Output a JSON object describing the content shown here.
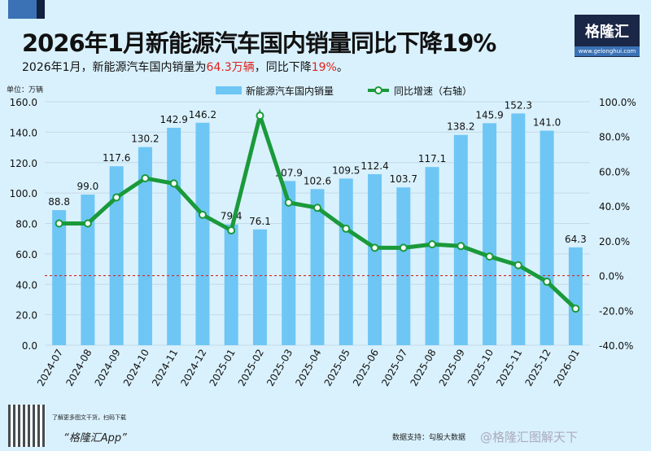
{
  "title": "2026年1月新能源汽车国内销量同比下降19%",
  "subtitle": {
    "pre": "2026年1月，新能源汽车国内销量为",
    "v1": "64.3万辆",
    "mid": "，同比下降",
    "v2": "19%",
    "post": "。"
  },
  "logo": {
    "name": "格隆汇",
    "url": "www.gelonghui.com"
  },
  "footer": {
    "qr_text": "了解更多图文干货，扫码下载",
    "app": "“格隆汇App”",
    "source": "数据支持：勾股大数据",
    "watermark": "@格隆汇图解天下"
  },
  "colors": {
    "bar": "#6ec6f5",
    "line": "#1a9a3a",
    "zero": "#d9262a"
  },
  "chart_data": {
    "type": "bar+line",
    "unit_label": "单位：万辆",
    "categories": [
      "2024-07",
      "2024-08",
      "2024-09",
      "2024-10",
      "2024-11",
      "2024-12",
      "2025-01",
      "2025-02",
      "2025-03",
      "2025-04",
      "2025-05",
      "2025-06",
      "2025-07",
      "2025-08",
      "2025-09",
      "2025-10",
      "2025-11",
      "2025-12",
      "2026-01"
    ],
    "series": [
      {
        "name": "新能源汽车国内销量",
        "axis": "left",
        "type": "bar",
        "values": [
          88.8,
          99.0,
          117.6,
          130.2,
          142.9,
          146.2,
          79.4,
          76.1,
          107.9,
          102.6,
          109.5,
          112.4,
          103.7,
          117.1,
          138.2,
          145.9,
          152.3,
          141.0,
          64.3
        ]
      },
      {
        "name": "同比增速（右轴）",
        "axis": "right",
        "type": "line",
        "values": [
          30,
          30,
          45,
          56,
          53,
          35,
          26,
          92,
          42,
          39,
          27,
          16,
          16,
          18,
          17,
          11,
          6,
          -3.5,
          -19
        ]
      }
    ],
    "ylim": [
      0,
      160
    ],
    "yticks": [
      "0.0",
      "20.0",
      "40.0",
      "60.0",
      "80.0",
      "100.0",
      "120.0",
      "140.0",
      "160.0"
    ],
    "y2lim": [
      -40,
      100
    ],
    "y2ticks": [
      "-40.0%",
      "-20.0%",
      "0.0%",
      "20.0%",
      "40.0%",
      "60.0%",
      "80.0%",
      "100.0%"
    ],
    "legend": "top-center"
  }
}
